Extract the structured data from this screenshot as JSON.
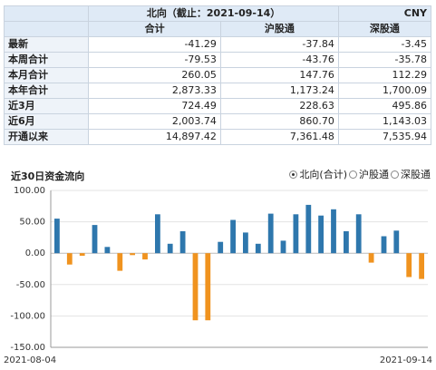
{
  "table": {
    "title": "北向（截止：2021-09-14）",
    "currency": "CNY",
    "columns": [
      "合计",
      "沪股通",
      "深股通"
    ],
    "rows": [
      {
        "label": "最新",
        "values": [
          "-41.29",
          "-37.84",
          "-3.45"
        ]
      },
      {
        "label": "本周合计",
        "values": [
          "-79.53",
          "-43.76",
          "-35.78"
        ]
      },
      {
        "label": "本月合计",
        "values": [
          "260.05",
          "147.76",
          "112.29"
        ]
      },
      {
        "label": "本年合计",
        "values": [
          "2,873.33",
          "1,173.24",
          "1,700.09"
        ]
      },
      {
        "label": "近3月",
        "values": [
          "724.49",
          "228.63",
          "495.86"
        ]
      },
      {
        "label": "近6月",
        "values": [
          "2,003.74",
          "860.70",
          "1,143.03"
        ]
      },
      {
        "label": "开通以来",
        "values": [
          "14,897.42",
          "7,361.48",
          "7,535.94"
        ]
      }
    ]
  },
  "chart_panel": {
    "title": "近30日资金流向",
    "options": [
      {
        "label": "北向(合计)",
        "selected": true
      },
      {
        "label": "沪股通",
        "selected": false
      },
      {
        "label": "深股通",
        "selected": false
      }
    ]
  },
  "chart_data": {
    "type": "bar",
    "x_start": "2021-08-04",
    "x_end": "2021-09-14",
    "ylim": [
      -150,
      100
    ],
    "yticks": [
      "100.00",
      "50.00",
      "0.00",
      "-50.00",
      "-100.00",
      "-150.00"
    ],
    "ytick_values": [
      100,
      50,
      0,
      -50,
      -100,
      -150
    ],
    "positive_color": "#2e77ad",
    "negative_color": "#f0931f",
    "values": [
      55,
      -18,
      -4,
      45,
      10,
      -28,
      -3,
      -10,
      62,
      15,
      35,
      -107,
      -107,
      18,
      53,
      33,
      15,
      63,
      20,
      62,
      77,
      60,
      70,
      35,
      62,
      -15,
      27,
      36,
      -38,
      -41
    ]
  }
}
